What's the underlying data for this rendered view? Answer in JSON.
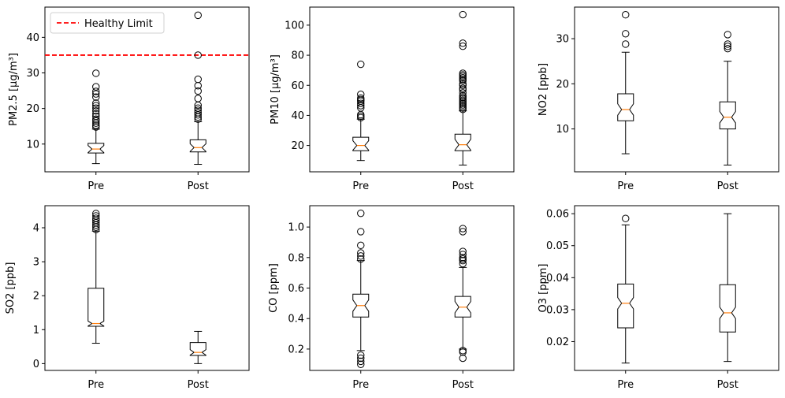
{
  "chart_data": [
    {
      "type": "box",
      "categories": [
        "Pre",
        "Post"
      ],
      "ylabel": "PM2.5 [μg/m³]",
      "ylim": [
        2.2,
        48.5
      ],
      "yticks": [
        10,
        20,
        30,
        40
      ],
      "notched": true,
      "boxes": [
        {
          "category": "Pre",
          "whisker_low": 4.5,
          "q1": 7.5,
          "median": 8.6,
          "q3": 10.2,
          "whisker_high": 14.2,
          "outliers": [
            14.8,
            15.3,
            15.9,
            16.5,
            17.0,
            17.8,
            18.5,
            19.3,
            20.1,
            20.8,
            21.5,
            23.2,
            24.1,
            24.8,
            26.1,
            29.9
          ]
        },
        {
          "category": "Post",
          "whisker_low": 4.3,
          "q1": 7.8,
          "median": 9.0,
          "q3": 11.2,
          "whisker_high": 16.3,
          "outliers": [
            17.0,
            17.6,
            18.2,
            18.8,
            19.5,
            20.1,
            20.9,
            22.8,
            24.9,
            26.4,
            28.2,
            35.0,
            46.2
          ]
        }
      ],
      "reference_line": {
        "label": "Healthy Limit",
        "value": 35,
        "color": "#ff0000",
        "style": "dashed"
      },
      "legend": {
        "position": "top-left",
        "entries": [
          "Healthy Limit"
        ]
      }
    },
    {
      "type": "box",
      "categories": [
        "Pre",
        "Post"
      ],
      "ylabel": "PM10 [μg/m³]",
      "ylim": [
        2.5,
        112
      ],
      "yticks": [
        20,
        40,
        60,
        80,
        100
      ],
      "notched": true,
      "boxes": [
        {
          "category": "Pre",
          "whisker_low": 10,
          "q1": 16.5,
          "median": 20,
          "q3": 25.5,
          "whisker_high": 37.5,
          "outliers": [
            38.5,
            39.5,
            40.5,
            45,
            46.5,
            48,
            49.5,
            50.5,
            51.5,
            54,
            74
          ]
        },
        {
          "category": "Post",
          "whisker_low": 7,
          "q1": 16.5,
          "median": 20.5,
          "q3": 27.5,
          "whisker_high": 43,
          "outliers": [
            44,
            45,
            46,
            47,
            48,
            49,
            50,
            51,
            52,
            53,
            55,
            57,
            58,
            60,
            61,
            63,
            64,
            65,
            66,
            67,
            68,
            86,
            88,
            107
          ]
        }
      ]
    },
    {
      "type": "box",
      "categories": [
        "Pre",
        "Post"
      ],
      "ylabel": "NO2 [ppb]",
      "ylim": [
        0.5,
        37
      ],
      "yticks": [
        10,
        20,
        30
      ],
      "notched": true,
      "boxes": [
        {
          "category": "Pre",
          "whisker_low": 4.5,
          "q1": 11.8,
          "median": 14.3,
          "q3": 17.8,
          "whisker_high": 27.0,
          "outliers": [
            28.8,
            31.1,
            35.3
          ]
        },
        {
          "category": "Post",
          "whisker_low": 2.0,
          "q1": 10.0,
          "median": 12.6,
          "q3": 16.0,
          "whisker_high": 25.0,
          "outliers": [
            27.8,
            28.3,
            28.8,
            30.9
          ]
        }
      ]
    },
    {
      "type": "box",
      "categories": [
        "Pre",
        "Post"
      ],
      "ylabel": "SO2 [ppb]",
      "ylim": [
        -0.2,
        4.65
      ],
      "yticks": [
        0,
        1,
        2,
        3,
        4
      ],
      "notched": true,
      "boxes": [
        {
          "category": "Pre",
          "whisker_low": 0.6,
          "q1": 1.1,
          "median": 1.18,
          "q3": 2.22,
          "whisker_high": 3.9,
          "outliers": [
            3.95,
            4.02,
            4.08,
            4.15,
            4.22,
            4.28,
            4.35,
            4.42
          ]
        },
        {
          "category": "Post",
          "whisker_low": 0.0,
          "q1": 0.24,
          "median": 0.33,
          "q3": 0.62,
          "whisker_high": 0.95,
          "outliers": []
        }
      ]
    },
    {
      "type": "box",
      "categories": [
        "Pre",
        "Post"
      ],
      "ylabel": "CO [ppm]",
      "ylim": [
        0.06,
        1.14
      ],
      "yticks": [
        0.2,
        0.4,
        0.6,
        0.8,
        1.0
      ],
      "notched": true,
      "boxes": [
        {
          "category": "Pre",
          "whisker_low": 0.19,
          "q1": 0.41,
          "median": 0.485,
          "q3": 0.56,
          "whisker_high": 0.78,
          "outliers": [
            0.1,
            0.12,
            0.14,
            0.16,
            0.79,
            0.81,
            0.83,
            0.88,
            0.97,
            1.09
          ]
        },
        {
          "category": "Post",
          "whisker_low": 0.2,
          "q1": 0.41,
          "median": 0.475,
          "q3": 0.545,
          "whisker_high": 0.735,
          "outliers": [
            0.14,
            0.18,
            0.19,
            0.76,
            0.78,
            0.79,
            0.8,
            0.82,
            0.84,
            0.97,
            0.99
          ]
        }
      ]
    },
    {
      "type": "box",
      "categories": [
        "Pre",
        "Post"
      ],
      "ylabel": "O3 [ppm]",
      "ylim": [
        0.011,
        0.0625
      ],
      "yticks": [
        0.02,
        0.03,
        0.04,
        0.05,
        0.06
      ],
      "notched": true,
      "boxes": [
        {
          "category": "Pre",
          "whisker_low": 0.0133,
          "q1": 0.0243,
          "median": 0.032,
          "q3": 0.038,
          "whisker_high": 0.0565,
          "outliers": [
            0.0585
          ]
        },
        {
          "category": "Post",
          "whisker_low": 0.0138,
          "q1": 0.023,
          "median": 0.029,
          "q3": 0.0378,
          "whisker_high": 0.06,
          "outliers": []
        }
      ]
    }
  ]
}
